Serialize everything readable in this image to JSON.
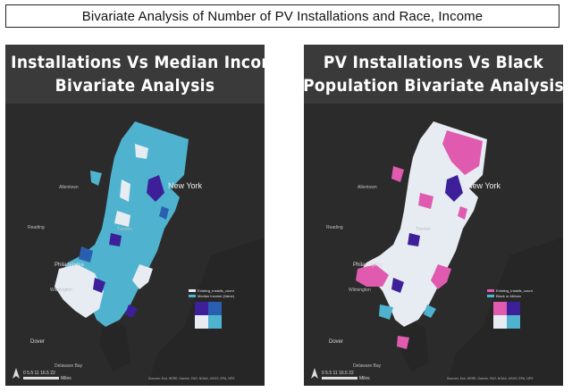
{
  "page_title": "Bivariate Analysis of Number of PV Installations and Race, Income",
  "maps": [
    {
      "header_line1": "PV Installations Vs Median Income",
      "header_line2": "Bivariate Analysis",
      "colors": {
        "primary": "#4fb3cf",
        "secondary": "#e6ecf2",
        "accent": "#3d1f9a",
        "mix": "#2a5fb0"
      },
      "legend": {
        "item1": "Existing_Installs_count",
        "item2": "Median Income (Value)"
      },
      "labels": {
        "new_york": "New York",
        "philadelphia": "Philadelphia",
        "trenton": "Trenton",
        "dover": "Dover",
        "allentown": "Allentown",
        "reading": "Reading",
        "wilmington": "Wilmington",
        "delaware_bay": "Delaware Bay"
      },
      "scale": "0  5.5  11  16.5  22",
      "scale_unit": "Miles",
      "attribution": "Sources: Esri, HERE, Garmin, FAO, NOAA, USGS, EPA, NPS"
    },
    {
      "header_line1": "PV Installations Vs Black",
      "header_line2": "Population Bivariate Analysis",
      "colors": {
        "primary": "#e05bb0",
        "secondary": "#e6ecf2",
        "accent": "#3d1f9a",
        "mix": "#4fb3cf"
      },
      "legend": {
        "item1": "Existing_Installs_count",
        "item2": "Black or African"
      },
      "labels": {
        "new_york": "New York",
        "philadelphia": "Philadelphia",
        "trenton": "Trenton",
        "dover": "Dover",
        "allentown": "Allentown",
        "reading": "Reading",
        "wilmington": "Wilmington",
        "delaware_bay": "Delaware Bay"
      },
      "scale": "0  5.5  11  16.5  22",
      "scale_unit": "Miles",
      "attribution": "Sources: Esri, HERE, Garmin, FAO, NOAA, USGS, EPA, NPS"
    }
  ]
}
